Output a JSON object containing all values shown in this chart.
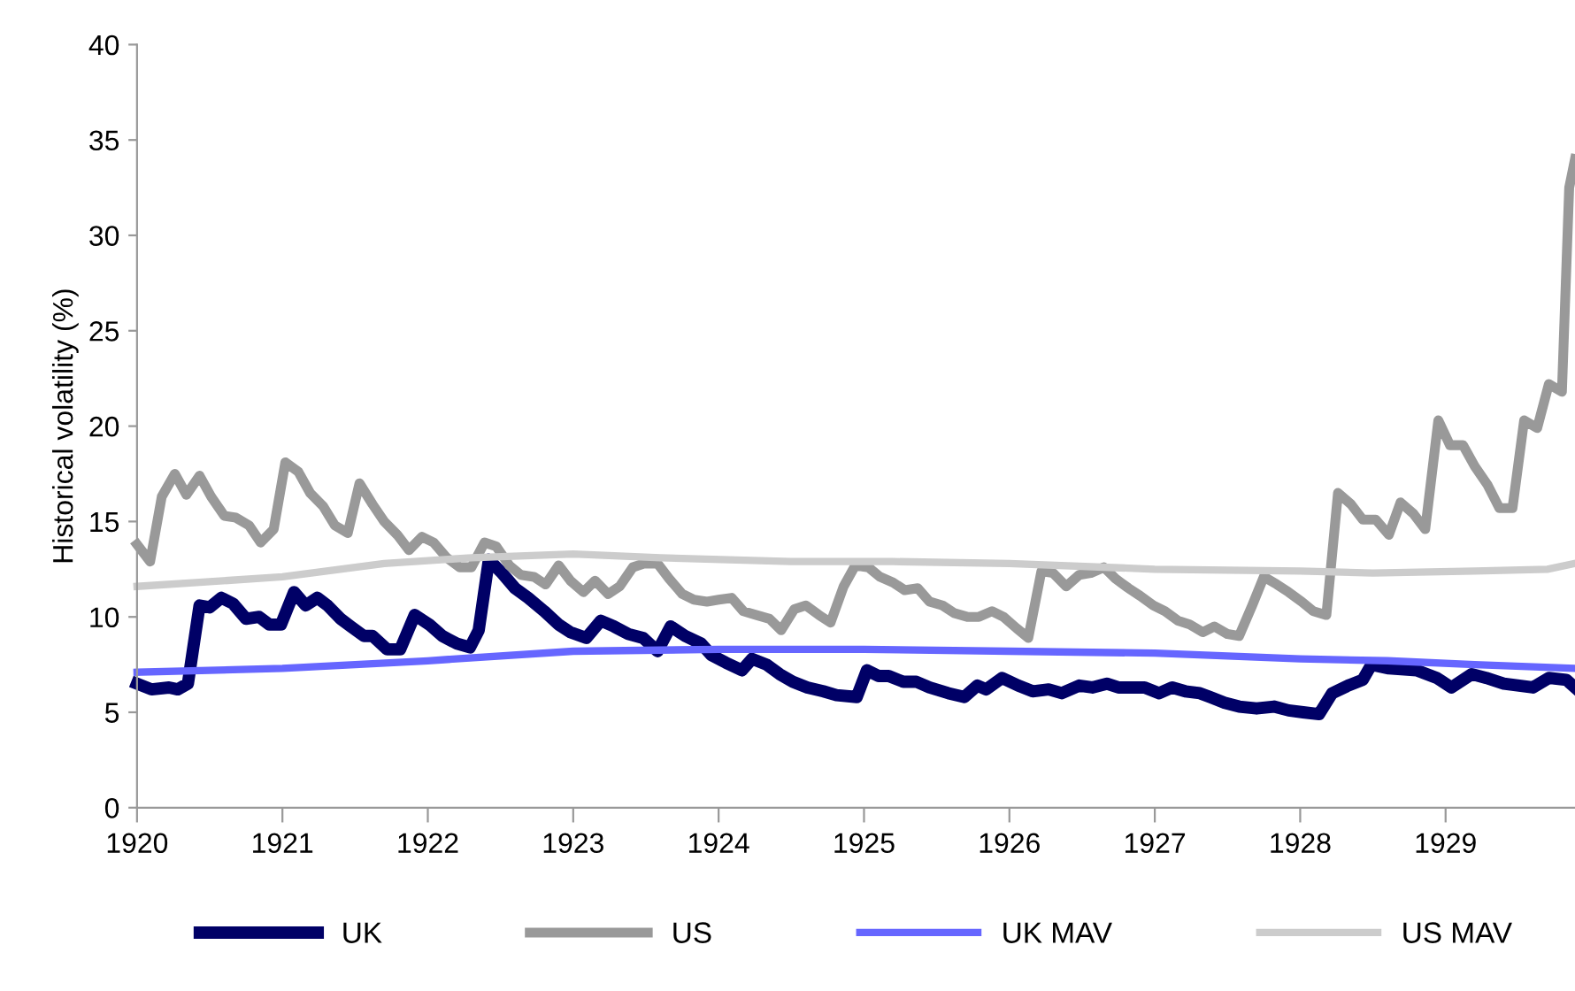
{
  "chart_data": {
    "type": "line",
    "ylabel": "Historical volatility (%)",
    "xlim": [
      1920,
      1929.89
    ],
    "xticks": [
      1920,
      1921,
      1922,
      1923,
      1924,
      1925,
      1926,
      1927,
      1928,
      1929
    ],
    "ylim": [
      0,
      40
    ],
    "yticks": [
      0,
      5,
      10,
      15,
      20,
      25,
      30,
      35,
      40
    ],
    "grid": false,
    "legend": "bottom",
    "line_style": "solid",
    "marker": "none",
    "series": [
      {
        "name": "UK",
        "color": "#000066",
        "x": [
          1920.0,
          1920.1,
          1920.22,
          1920.28,
          1920.35,
          1920.43,
          1920.5,
          1920.58,
          1920.66,
          1920.75,
          1920.84,
          1920.91,
          1920.99,
          1921.08,
          1921.16,
          1921.24,
          1921.31,
          1921.4,
          1921.47,
          1921.56,
          1921.62,
          1921.72,
          1921.81,
          1921.91,
          1922.01,
          1922.1,
          1922.2,
          1922.29,
          1922.35,
          1922.42,
          1922.51,
          1922.6,
          1922.69,
          1922.8,
          1922.9,
          1922.98,
          1923.09,
          1923.19,
          1923.28,
          1923.38,
          1923.48,
          1923.58,
          1923.67,
          1923.77,
          1923.88,
          1923.95,
          1924.05,
          1924.16,
          1924.23,
          1924.33,
          1924.42,
          1924.51,
          1924.61,
          1924.72,
          1924.81,
          1924.95,
          1925.02,
          1925.1,
          1925.17,
          1925.27,
          1925.36,
          1925.45,
          1925.58,
          1925.69,
          1925.78,
          1925.84,
          1925.95,
          1926.06,
          1926.16,
          1926.27,
          1926.36,
          1926.48,
          1926.57,
          1926.67,
          1926.75,
          1926.85,
          1926.93,
          1927.03,
          1927.12,
          1927.21,
          1927.31,
          1927.38,
          1927.48,
          1927.58,
          1927.7,
          1927.82,
          1927.92,
          1928.02,
          1928.13,
          1928.22,
          1928.33,
          1928.43,
          1928.49,
          1928.61,
          1928.8,
          1928.94,
          1929.04,
          1929.18,
          1929.28,
          1929.4,
          1929.6,
          1929.71,
          1929.83,
          1929.89
        ],
        "values": [
          6.5,
          6.2,
          6.3,
          6.2,
          6.5,
          10.6,
          10.5,
          11.0,
          10.7,
          9.9,
          10.0,
          9.6,
          9.6,
          11.3,
          10.6,
          11.0,
          10.6,
          9.9,
          9.5,
          9.0,
          9.0,
          8.3,
          8.3,
          10.1,
          9.6,
          9.0,
          8.6,
          8.4,
          9.3,
          13.0,
          12.3,
          11.5,
          11.0,
          10.3,
          9.6,
          9.2,
          8.9,
          9.8,
          9.5,
          9.1,
          8.9,
          8.2,
          9.5,
          9.0,
          8.6,
          8.0,
          7.6,
          7.2,
          7.8,
          7.5,
          7.0,
          6.6,
          6.3,
          6.1,
          5.9,
          5.8,
          7.2,
          6.9,
          6.9,
          6.6,
          6.6,
          6.3,
          6.0,
          5.8,
          6.4,
          6.2,
          6.8,
          6.4,
          6.1,
          6.2,
          6.0,
          6.4,
          6.3,
          6.5,
          6.3,
          6.3,
          6.3,
          6.0,
          6.3,
          6.1,
          6.0,
          5.8,
          5.5,
          5.3,
          5.2,
          5.3,
          5.1,
          5.0,
          4.9,
          6.0,
          6.4,
          6.7,
          7.5,
          7.3,
          7.2,
          6.8,
          6.3,
          7.0,
          6.8,
          6.5,
          6.3,
          6.8,
          6.7,
          6.3
        ]
      },
      {
        "name": "US",
        "color": "#999999",
        "x": [
          1920.0,
          1920.09,
          1920.17,
          1920.26,
          1920.34,
          1920.43,
          1920.51,
          1920.6,
          1920.68,
          1920.77,
          1920.85,
          1920.94,
          1921.02,
          1921.11,
          1921.19,
          1921.28,
          1921.36,
          1921.45,
          1921.53,
          1921.62,
          1921.7,
          1921.79,
          1921.87,
          1921.96,
          1922.04,
          1922.13,
          1922.22,
          1922.3,
          1922.39,
          1922.47,
          1922.56,
          1922.64,
          1922.73,
          1922.81,
          1922.9,
          1922.98,
          1923.07,
          1923.15,
          1923.24,
          1923.32,
          1923.41,
          1923.49,
          1923.58,
          1923.66,
          1923.75,
          1923.83,
          1923.92,
          1924.0,
          1924.09,
          1924.17,
          1924.26,
          1924.35,
          1924.43,
          1924.52,
          1924.6,
          1924.69,
          1924.77,
          1924.86,
          1924.94,
          1925.03,
          1925.11,
          1925.2,
          1925.28,
          1925.37,
          1925.45,
          1925.54,
          1925.62,
          1925.71,
          1925.79,
          1925.88,
          1925.96,
          1926.05,
          1926.13,
          1926.22,
          1926.3,
          1926.39,
          1926.48,
          1926.56,
          1926.65,
          1926.73,
          1926.82,
          1926.9,
          1926.99,
          1927.07,
          1927.16,
          1927.24,
          1927.33,
          1927.41,
          1927.5,
          1927.58,
          1927.67,
          1927.75,
          1927.84,
          1927.92,
          1928.01,
          1928.09,
          1928.18,
          1928.26,
          1928.35,
          1928.43,
          1928.52,
          1928.61,
          1928.69,
          1928.78,
          1928.86,
          1928.95,
          1929.03,
          1929.12,
          1929.2,
          1929.29,
          1929.37,
          1929.46,
          1929.54,
          1929.63,
          1929.71,
          1929.8,
          1929.85,
          1929.89
        ],
        "values": [
          13.8,
          12.9,
          16.3,
          17.5,
          16.4,
          17.4,
          16.3,
          15.3,
          15.2,
          14.8,
          13.9,
          14.6,
          18.1,
          17.6,
          16.5,
          15.8,
          14.8,
          14.4,
          17.0,
          15.9,
          15.0,
          14.3,
          13.5,
          14.2,
          13.9,
          13.1,
          12.6,
          12.6,
          13.9,
          13.7,
          12.7,
          12.2,
          12.1,
          11.7,
          12.7,
          11.9,
          11.3,
          11.9,
          11.2,
          11.6,
          12.6,
          12.8,
          12.8,
          12.0,
          11.2,
          10.9,
          10.8,
          10.9,
          11.0,
          10.3,
          10.1,
          9.9,
          9.3,
          10.4,
          10.6,
          10.1,
          9.7,
          11.6,
          12.7,
          12.6,
          12.1,
          11.8,
          11.4,
          11.5,
          10.8,
          10.6,
          10.2,
          10.0,
          10.0,
          10.3,
          10.0,
          9.4,
          8.9,
          12.4,
          12.3,
          11.6,
          12.2,
          12.3,
          12.6,
          12.0,
          11.5,
          11.1,
          10.6,
          10.3,
          9.8,
          9.6,
          9.2,
          9.5,
          9.1,
          9.0,
          10.6,
          12.1,
          11.7,
          11.3,
          10.8,
          10.3,
          10.1,
          16.5,
          15.9,
          15.1,
          15.1,
          14.3,
          16.0,
          15.4,
          14.6,
          20.3,
          19.0,
          19.0,
          17.9,
          16.9,
          15.7,
          15.7,
          20.3,
          19.9,
          22.2,
          21.8,
          32.5,
          34.0
        ]
      },
      {
        "name": "UK MAV",
        "color": "#6666ff",
        "x": [
          1920,
          1921,
          1922,
          1923,
          1924,
          1925,
          1926,
          1927,
          1928,
          1928.6,
          1929.2,
          1929.89
        ],
        "values": [
          7.1,
          7.3,
          7.7,
          8.2,
          8.3,
          8.3,
          8.2,
          8.1,
          7.8,
          7.7,
          7.5,
          7.3
        ]
      },
      {
        "name": "US MAV",
        "color": "#cccccc",
        "x": [
          1920,
          1921,
          1921.7,
          1922.3,
          1923,
          1923.6,
          1924.5,
          1925.2,
          1926,
          1927,
          1928,
          1928.5,
          1929.2,
          1929.7,
          1929.89
        ],
        "values": [
          11.6,
          12.1,
          12.8,
          13.1,
          13.3,
          13.1,
          12.9,
          12.9,
          12.8,
          12.5,
          12.4,
          12.3,
          12.4,
          12.5,
          12.8
        ]
      }
    ]
  }
}
